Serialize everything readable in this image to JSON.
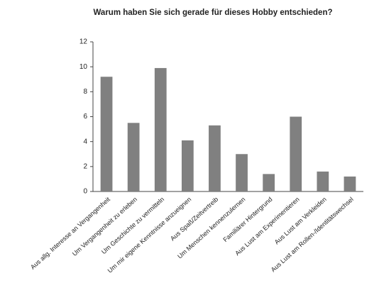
{
  "chart_data": {
    "type": "bar",
    "title": "Warum haben Sie sich gerade für dieses Hobby entschieden?",
    "categories": [
      "Aus allg. Interesse an Vergangenheit",
      "Um Vergangenheit zu erleben",
      "Um Geschichte zu vermitteln",
      "Um mir eigene Kenntnisse anzueignen",
      "Aus Spaß/Zeitvertreib",
      "Um Menschen kennenzulernen",
      "Familiärer Hintergrund",
      "Aus Lust am Experimentieren",
      "Aus Lust am Verkleiden",
      "Aus Lust am Rollen-/Identitätswechsel"
    ],
    "values": [
      9.2,
      5.5,
      9.9,
      4.1,
      5.3,
      3.0,
      1.4,
      6.0,
      1.6,
      1.2
    ],
    "color": "#808080",
    "ylim": [
      0,
      12
    ],
    "yticks": [
      0,
      2,
      4,
      6,
      8,
      10,
      12
    ],
    "grid": false
  }
}
